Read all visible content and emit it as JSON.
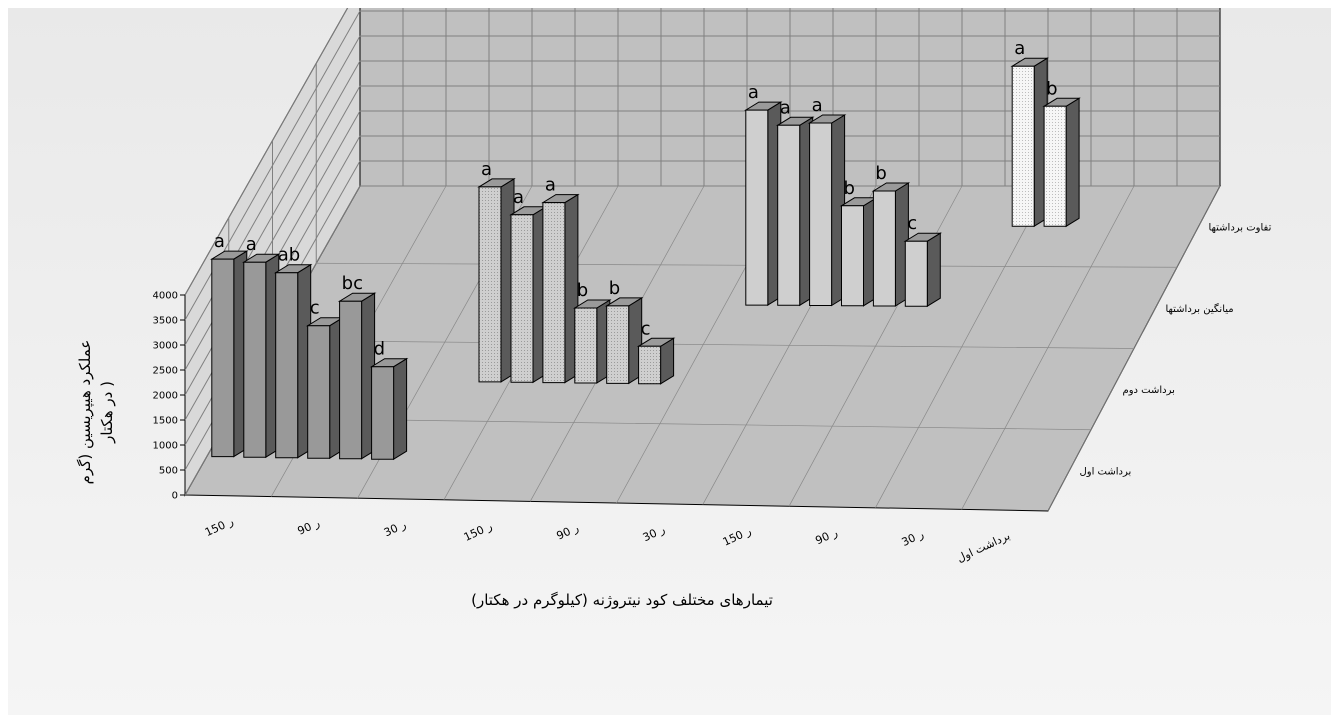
{
  "chart_data": {
    "type": "bar",
    "y_ticks": [
      "0",
      "500",
      "1000",
      "1500",
      "2000",
      "2500",
      "3000",
      "3500",
      "4000"
    ],
    "ylim": [
      0,
      4000
    ],
    "ylabel_line1": "عملکرد هیپریسین  (گرم",
    "ylabel_line2": "در هکتار )",
    "xlabel": "تیمارهای مختلف  کود نیتروژنه (کیلوگرم در هکتار)",
    "x_tick_labels": [
      "ر 150",
      "ر 90",
      "ر 30",
      "ر 150",
      "ر 90",
      "ر 30",
      "ر 150",
      "ر 90",
      "ر 30",
      "برداشت اول"
    ],
    "series": [
      {
        "name": "برداشت اول",
        "values": [
          3950,
          3900,
          3700,
          2650,
          3150,
          1850
        ],
        "letters": [
          "a",
          "a",
          "ab",
          "c",
          "bc",
          "d"
        ],
        "fill": "#999999"
      },
      {
        "name": "برداشت دوم",
        "values": [
          3900,
          3350,
          3600,
          1500,
          1550,
          750
        ],
        "letters": [
          "a",
          "a",
          "a",
          "b",
          "b",
          "c"
        ],
        "fill": "#c8c8c8"
      },
      {
        "name": "میانگین برداشتها",
        "values": [
          3900,
          3600,
          3650,
          2000,
          2300,
          1300
        ],
        "letters": [
          "a",
          "a",
          "a",
          "b",
          "b",
          "c"
        ],
        "fill": "#cfcfcf"
      },
      {
        "name": "تفاوت برداشتها",
        "values": [
          3200,
          2400
        ],
        "letters": [
          "a",
          "b"
        ],
        "fill": "#f3f3f3"
      }
    ]
  },
  "colors": {
    "wall": "#c0c0c0",
    "floor": "#c0c0c0",
    "grid": "#808080",
    "bar_side": "#5a5a5a",
    "bar_top": "#9a9a9a"
  }
}
